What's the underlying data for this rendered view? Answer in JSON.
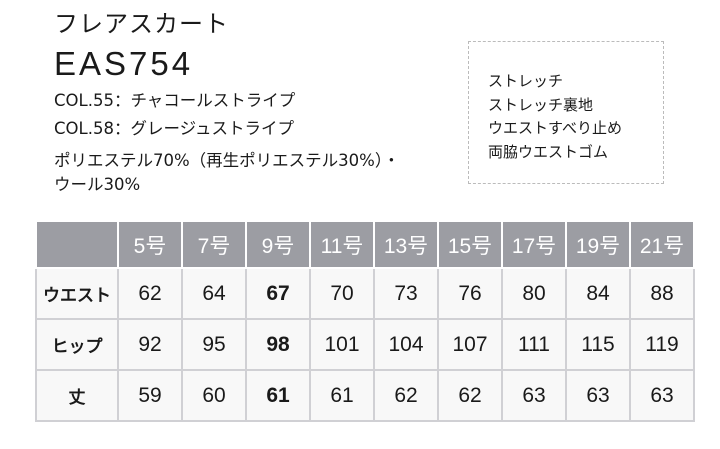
{
  "product": {
    "type": "フレアスカート",
    "code": "EAS754",
    "colors": [
      "COL.55：チャコールストライプ",
      "COL.58：グレージュストライプ"
    ],
    "material": [
      "ポリエステル70%（再生ポリエステル30%）・",
      "ウール30%"
    ]
  },
  "features": [
    "ストレッチ",
    "ストレッチ裏地",
    "ウエストすべり止め",
    "両脇ウエストゴム"
  ],
  "table": {
    "sizes": [
      "5号",
      "7号",
      "9号",
      "11号",
      "13号",
      "15号",
      "17号",
      "19号",
      "21号"
    ],
    "rows": [
      {
        "label": "ウエスト",
        "values": [
          "62",
          "64",
          "67",
          "70",
          "73",
          "76",
          "80",
          "84",
          "88"
        ]
      },
      {
        "label": "ヒップ",
        "values": [
          "92",
          "95",
          "98",
          "101",
          "104",
          "107",
          "111",
          "115",
          "119"
        ]
      },
      {
        "label": "丈",
        "values": [
          "59",
          "60",
          "61",
          "61",
          "62",
          "62",
          "63",
          "63",
          "63"
        ]
      }
    ],
    "highlight_column": "9号"
  },
  "colors": {
    "header": "#9c9da3"
  }
}
